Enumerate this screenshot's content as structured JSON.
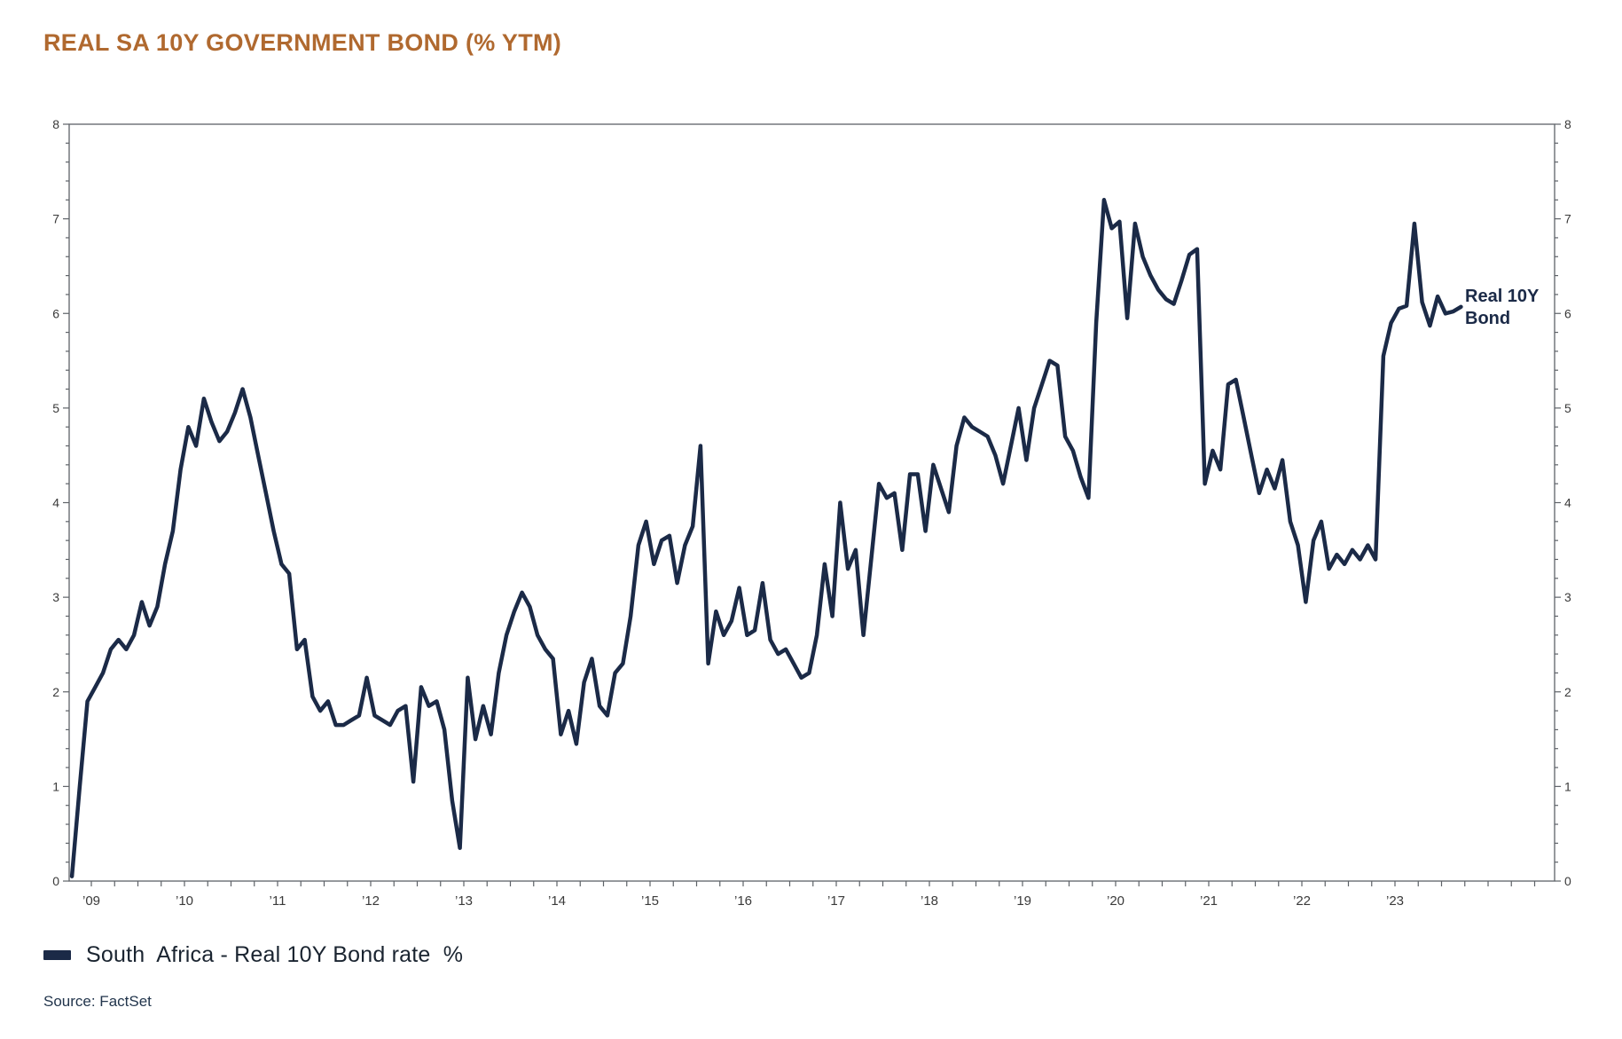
{
  "title": {
    "text": "REAL SA 10Y GOVERNMENT BOND (% YTM)"
  },
  "annotation": {
    "line1": "Real 10Y",
    "line2": "Bond"
  },
  "legend": {
    "label": "South  Africa - Real 10Y Bond rate  %"
  },
  "source": {
    "text": "Source: FactSet"
  },
  "colors": {
    "title": "#B0692F",
    "line": "#1B2A47",
    "axis": "#5E6268",
    "tick_label": "#3A3A3A",
    "legend_text": "#1A2430",
    "annotation": "#1B2A47",
    "source_text": "#22354C"
  },
  "chart_data": {
    "type": "line",
    "title": "REAL SA 10Y GOVERNMENT BOND (% YTM)",
    "xlabel": "",
    "ylabel": "",
    "ylim": [
      0,
      8
    ],
    "y_major_step": 1,
    "y_minor_step": 0.2,
    "y_tick_labels": [
      "0",
      "1",
      "2",
      "3",
      "4",
      "5",
      "6",
      "7",
      "8"
    ],
    "dual_y_axis": true,
    "grid": false,
    "legend_position": "bottom-left",
    "x_minor_tick": "quarterly",
    "x_axis_start_year_fraction": 2008.76,
    "x_axis_end_year_fraction": 2024.71,
    "x_tick_labels": [
      "’09",
      "’10",
      "’11",
      "’12",
      "’13",
      "’14",
      "’15",
      "’16",
      "’17",
      "’18",
      "’19",
      "’20",
      "’21",
      "’22",
      "’23"
    ],
    "end_point_annotation": "Real 10Y Bond",
    "end_point_value": 6.07,
    "series": [
      {
        "name": "South Africa - Real 10Y Bond rate %",
        "start": "2008-10",
        "frequency": "monthly",
        "values": [
          0.05,
          1.0,
          1.9,
          2.05,
          2.2,
          2.45,
          2.55,
          2.45,
          2.6,
          2.95,
          2.7,
          2.9,
          3.35,
          3.7,
          4.35,
          4.8,
          4.6,
          5.1,
          4.85,
          4.65,
          4.75,
          4.95,
          5.2,
          4.9,
          4.5,
          4.1,
          3.7,
          3.35,
          3.25,
          2.45,
          2.55,
          1.95,
          1.8,
          1.9,
          1.65,
          1.65,
          1.7,
          1.75,
          2.15,
          1.75,
          1.7,
          1.65,
          1.8,
          1.85,
          1.05,
          2.05,
          1.85,
          1.9,
          1.6,
          0.85,
          0.35,
          2.15,
          1.5,
          1.85,
          1.55,
          2.2,
          2.6,
          2.85,
          3.05,
          2.9,
          2.6,
          2.45,
          2.35,
          1.55,
          1.8,
          1.45,
          2.1,
          2.35,
          1.85,
          1.75,
          2.2,
          2.3,
          2.8,
          3.55,
          3.8,
          3.35,
          3.6,
          3.65,
          3.15,
          3.55,
          3.75,
          4.6,
          2.3,
          2.85,
          2.6,
          2.75,
          3.1,
          2.6,
          2.65,
          3.15,
          2.55,
          2.4,
          2.45,
          2.3,
          2.15,
          2.2,
          2.6,
          3.35,
          2.8,
          4.0,
          3.3,
          3.5,
          2.6,
          3.4,
          4.2,
          4.05,
          4.1,
          3.5,
          4.3,
          4.3,
          3.7,
          4.4,
          4.15,
          3.9,
          4.6,
          4.9,
          4.8,
          4.75,
          4.7,
          4.5,
          4.2,
          4.6,
          5.0,
          4.45,
          5.0,
          5.25,
          5.5,
          5.45,
          4.7,
          4.55,
          4.27,
          4.05,
          5.9,
          7.2,
          6.9,
          6.97,
          5.95,
          6.95,
          6.6,
          6.4,
          6.25,
          6.15,
          6.1,
          6.35,
          6.62,
          6.68,
          4.2,
          4.55,
          4.35,
          5.25,
          5.3,
          4.9,
          4.5,
          4.1,
          4.35,
          4.15,
          4.45,
          3.8,
          3.55,
          2.95,
          3.6,
          3.8,
          3.3,
          3.45,
          3.35,
          3.5,
          3.4,
          3.55,
          3.4,
          5.55,
          5.9,
          6.05,
          6.08,
          6.95,
          6.12,
          5.87,
          6.18,
          6.0,
          6.02,
          6.07
        ]
      }
    ]
  }
}
